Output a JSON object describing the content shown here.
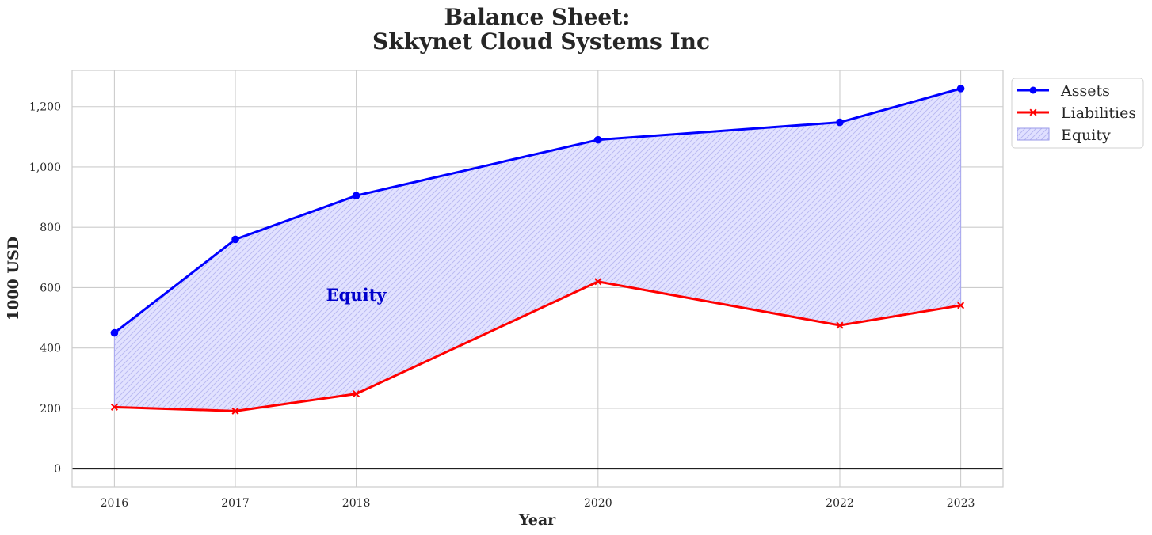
{
  "chart_data": {
    "type": "line",
    "title_line1": "Balance Sheet:",
    "title_line2": "Skkynet Cloud Systems Inc",
    "xlabel": "Year",
    "ylabel": "1000 USD",
    "x": [
      2016,
      2017,
      2018,
      2020,
      2022,
      2023
    ],
    "x_tick_labels": [
      "2016",
      "2017",
      "2018",
      "2020",
      "2022",
      "2023"
    ],
    "xlim": [
      2015.65,
      2023.35
    ],
    "ylim": [
      -60,
      1320
    ],
    "y_ticks": [
      0,
      200,
      400,
      600,
      800,
      1000,
      1200
    ],
    "y_tick_labels": [
      "0",
      "200",
      "400",
      "600",
      "800",
      "1,000",
      "1,200"
    ],
    "series": [
      {
        "name": "Assets",
        "color": "#0000ff",
        "marker": "circle",
        "values": [
          450,
          760,
          905,
          1090,
          1148,
          1260
        ]
      },
      {
        "name": "Liabilities",
        "color": "#ff0000",
        "marker": "x",
        "values": [
          204,
          191,
          248,
          620,
          475,
          541
        ]
      }
    ],
    "fill": {
      "name": "Equity",
      "between": [
        "Assets",
        "Liabilities"
      ],
      "color": "#0000ff",
      "hatch": "////"
    },
    "annotation": {
      "text": "Equity",
      "x": 2018,
      "y": 575,
      "color": "#0000cc"
    },
    "zero_line": true,
    "grid": true,
    "legend_position": "outside-top-right"
  }
}
